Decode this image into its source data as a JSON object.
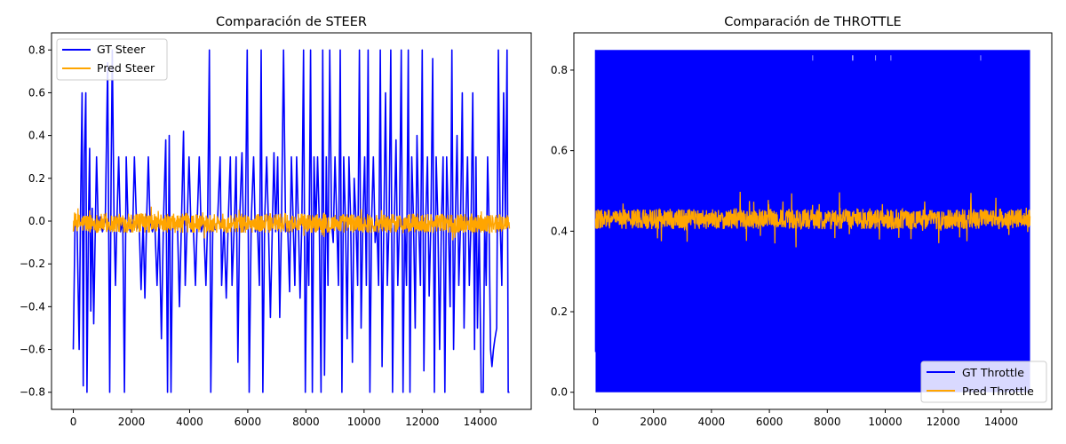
{
  "chart_data": [
    {
      "type": "line",
      "title": "Comparación de STEER",
      "xlabel": "",
      "ylabel": "",
      "xlim": [
        -750,
        15750
      ],
      "ylim": [
        -0.88,
        0.88
      ],
      "xticks": [
        0,
        2000,
        4000,
        6000,
        8000,
        10000,
        12000,
        14000
      ],
      "yticks": [
        -0.8,
        -0.6,
        -0.4,
        -0.2,
        0.0,
        0.2,
        0.4,
        0.6,
        0.8
      ],
      "ytick_labels": [
        "−0.8",
        "−0.6",
        "−0.4",
        "−0.2",
        "0.0",
        "0.2",
        "0.4",
        "0.6",
        "0.8"
      ],
      "grid": false,
      "legend": "upper-left",
      "series": [
        {
          "name": "GT Steer",
          "color": "#0000ff",
          "points": [
            [
              0,
              -0.6
            ],
            [
              60,
              0.01
            ],
            [
              130,
              -0.03
            ],
            [
              200,
              -0.6
            ],
            [
              250,
              0.06
            ],
            [
              300,
              0.6
            ],
            [
              340,
              -0.77
            ],
            [
              380,
              0.3
            ],
            [
              430,
              0.6
            ],
            [
              470,
              -0.8
            ],
            [
              520,
              0.0
            ],
            [
              560,
              0.34
            ],
            [
              600,
              -0.42
            ],
            [
              650,
              0.06
            ],
            [
              700,
              -0.48
            ],
            [
              760,
              0.0
            ],
            [
              800,
              0.3
            ],
            [
              860,
              -0.04
            ],
            [
              920,
              0.02
            ],
            [
              1000,
              -0.05
            ],
            [
              1100,
              0.0
            ],
            [
              1180,
              0.74
            ],
            [
              1250,
              -0.8
            ],
            [
              1300,
              0.22
            ],
            [
              1340,
              0.8
            ],
            [
              1400,
              0.0
            ],
            [
              1450,
              -0.3
            ],
            [
              1500,
              0.0
            ],
            [
              1560,
              0.3
            ],
            [
              1620,
              -0.05
            ],
            [
              1700,
              0.0
            ],
            [
              1760,
              -0.8
            ],
            [
              1820,
              0.3
            ],
            [
              1880,
              0.0
            ],
            [
              1960,
              -0.05
            ],
            [
              2050,
              0.0
            ],
            [
              2100,
              0.3
            ],
            [
              2180,
              -0.04
            ],
            [
              2260,
              0.01
            ],
            [
              2330,
              -0.32
            ],
            [
              2400,
              0.0
            ],
            [
              2460,
              -0.36
            ],
            [
              2520,
              0.0
            ],
            [
              2580,
              0.3
            ],
            [
              2640,
              0.0
            ],
            [
              2720,
              -0.05
            ],
            [
              2800,
              0.0
            ],
            [
              2880,
              -0.3
            ],
            [
              2950,
              0.0
            ],
            [
              3030,
              -0.55
            ],
            [
              3100,
              0.0
            ],
            [
              3180,
              0.38
            ],
            [
              3240,
              -0.8
            ],
            [
              3300,
              0.4
            ],
            [
              3360,
              -0.8
            ],
            [
              3420,
              0.0
            ],
            [
              3500,
              -0.03
            ],
            [
              3580,
              0.0
            ],
            [
              3650,
              -0.4
            ],
            [
              3720,
              0.0
            ],
            [
              3790,
              0.42
            ],
            [
              3850,
              -0.3
            ],
            [
              3920,
              0.0
            ],
            [
              3980,
              0.3
            ],
            [
              4050,
              -0.05
            ],
            [
              4120,
              0.0
            ],
            [
              4200,
              -0.3
            ],
            [
              4260,
              0.0
            ],
            [
              4330,
              0.3
            ],
            [
              4400,
              -0.05
            ],
            [
              4480,
              0.0
            ],
            [
              4560,
              -0.3
            ],
            [
              4620,
              0.0
            ],
            [
              4680,
              0.8
            ],
            [
              4730,
              -0.8
            ],
            [
              4800,
              0.0
            ],
            [
              4880,
              -0.04
            ],
            [
              4960,
              0.0
            ],
            [
              5050,
              0.3
            ],
            [
              5100,
              -0.3
            ],
            [
              5180,
              0.0
            ],
            [
              5260,
              -0.36
            ],
            [
              5330,
              0.01
            ],
            [
              5400,
              0.3
            ],
            [
              5460,
              -0.3
            ],
            [
              5540,
              0.0
            ],
            [
              5600,
              0.3
            ],
            [
              5660,
              -0.66
            ],
            [
              5720,
              0.0
            ],
            [
              5800,
              0.32
            ],
            [
              5850,
              -0.05
            ],
            [
              5920,
              0.0
            ],
            [
              5980,
              0.8
            ],
            [
              6050,
              -0.8
            ],
            [
              6120,
              0.0
            ],
            [
              6200,
              0.3
            ],
            [
              6260,
              -0.05
            ],
            [
              6330,
              0.0
            ],
            [
              6400,
              -0.3
            ],
            [
              6460,
              0.8
            ],
            [
              6520,
              -0.8
            ],
            [
              6580,
              0.0
            ],
            [
              6650,
              0.3
            ],
            [
              6710,
              0.0
            ],
            [
              6780,
              -0.45
            ],
            [
              6850,
              0.0
            ],
            [
              6900,
              0.32
            ],
            [
              6960,
              -0.05
            ],
            [
              7030,
              0.3
            ],
            [
              7100,
              -0.45
            ],
            [
              7160,
              0.0
            ],
            [
              7230,
              0.8
            ],
            [
              7300,
              -0.05
            ],
            [
              7370,
              0.0
            ],
            [
              7440,
              -0.33
            ],
            [
              7500,
              0.3
            ],
            [
              7560,
              0.0
            ],
            [
              7620,
              -0.3
            ],
            [
              7680,
              0.3
            ],
            [
              7740,
              0.0
            ],
            [
              7800,
              -0.36
            ],
            [
              7860,
              0.0
            ],
            [
              7920,
              0.8
            ],
            [
              7980,
              -0.8
            ],
            [
              8040,
              0.0
            ],
            [
              8100,
              -0.3
            ],
            [
              8160,
              0.8
            ],
            [
              8220,
              -0.8
            ],
            [
              8280,
              0.3
            ],
            [
              8340,
              -0.05
            ],
            [
              8400,
              0.3
            ],
            [
              8460,
              0.0
            ],
            [
              8520,
              -0.8
            ],
            [
              8580,
              0.8
            ],
            [
              8640,
              -0.72
            ],
            [
              8700,
              0.3
            ],
            [
              8760,
              -0.3
            ],
            [
              8820,
              0.8
            ],
            [
              8880,
              0.0
            ],
            [
              8940,
              -0.1
            ],
            [
              9000,
              0.3
            ],
            [
              9060,
              0.0
            ],
            [
              9120,
              -0.3
            ],
            [
              9180,
              0.8
            ],
            [
              9240,
              -0.8
            ],
            [
              9300,
              0.3
            ],
            [
              9360,
              0.0
            ],
            [
              9420,
              -0.55
            ],
            [
              9480,
              0.3
            ],
            [
              9540,
              0.0
            ],
            [
              9600,
              -0.66
            ],
            [
              9660,
              0.2
            ],
            [
              9720,
              0.0
            ],
            [
              9780,
              -0.3
            ],
            [
              9840,
              0.8
            ],
            [
              9900,
              -0.5
            ],
            [
              9960,
              0.0
            ],
            [
              10020,
              0.3
            ],
            [
              10080,
              -0.3
            ],
            [
              10140,
              0.8
            ],
            [
              10200,
              -0.8
            ],
            [
              10260,
              0.0
            ],
            [
              10320,
              0.3
            ],
            [
              10380,
              -0.1
            ],
            [
              10440,
              0.0
            ],
            [
              10500,
              -0.3
            ],
            [
              10560,
              0.8
            ],
            [
              10620,
              -0.68
            ],
            [
              10680,
              0.0
            ],
            [
              10740,
              0.6
            ],
            [
              10800,
              -0.3
            ],
            [
              10860,
              0.0
            ],
            [
              10920,
              0.8
            ],
            [
              10980,
              -0.8
            ],
            [
              11040,
              0.0
            ],
            [
              11100,
              0.38
            ],
            [
              11160,
              -0.3
            ],
            [
              11220,
              0.0
            ],
            [
              11280,
              0.8
            ],
            [
              11340,
              -0.8
            ],
            [
              11400,
              0.0
            ],
            [
              11460,
              -0.3
            ],
            [
              11520,
              0.8
            ],
            [
              11580,
              -0.8
            ],
            [
              11640,
              0.3
            ],
            [
              11700,
              0.0
            ],
            [
              11760,
              -0.5
            ],
            [
              11820,
              0.4
            ],
            [
              11880,
              0.0
            ],
            [
              11940,
              -0.3
            ],
            [
              12000,
              0.8
            ],
            [
              12060,
              -0.7
            ],
            [
              12120,
              0.0
            ],
            [
              12180,
              0.3
            ],
            [
              12240,
              -0.35
            ],
            [
              12300,
              0.0
            ],
            [
              12360,
              0.76
            ],
            [
              12420,
              -0.8
            ],
            [
              12480,
              0.3
            ],
            [
              12540,
              0.0
            ],
            [
              12600,
              -0.6
            ],
            [
              12660,
              0.0
            ],
            [
              12720,
              0.3
            ],
            [
              12780,
              -0.8
            ],
            [
              12840,
              0.3
            ],
            [
              12900,
              0.0
            ],
            [
              12960,
              -0.4
            ],
            [
              13020,
              0.8
            ],
            [
              13080,
              -0.6
            ],
            [
              13140,
              0.0
            ],
            [
              13200,
              0.4
            ],
            [
              13260,
              -0.3
            ],
            [
              13320,
              0.0
            ],
            [
              13380,
              0.6
            ],
            [
              13440,
              -0.5
            ],
            [
              13500,
              0.0
            ],
            [
              13560,
              0.3
            ],
            [
              13620,
              -0.3
            ],
            [
              13680,
              0.0
            ],
            [
              13740,
              0.6
            ],
            [
              13800,
              -0.6
            ],
            [
              13850,
              0.3
            ],
            [
              13900,
              -0.5
            ],
            [
              13960,
              0.0
            ],
            [
              14030,
              -0.8
            ],
            [
              14100,
              -0.8
            ],
            [
              14150,
              0.0
            ],
            [
              14200,
              -0.3
            ],
            [
              14250,
              0.3
            ],
            [
              14300,
              0.0
            ],
            [
              14350,
              -0.6
            ],
            [
              14400,
              -0.68
            ],
            [
              14450,
              -0.6
            ],
            [
              14500,
              -0.55
            ],
            [
              14560,
              -0.5
            ],
            [
              14620,
              0.8
            ],
            [
              14680,
              0.0
            ],
            [
              14740,
              -0.3
            ],
            [
              14800,
              0.6
            ],
            [
              14860,
              0.0
            ],
            [
              14920,
              0.8
            ],
            [
              14960,
              -0.8
            ],
            [
              15000,
              -0.8
            ]
          ]
        },
        {
          "name": "Pred Steer",
          "color": "#ffa500",
          "mean": -0.01,
          "noise_amplitude": 0.045,
          "range": [
            -0.1,
            0.1
          ],
          "x_range": [
            0,
            15000
          ]
        }
      ]
    },
    {
      "type": "line",
      "title": "Comparación de THROTTLE",
      "xlabel": "",
      "ylabel": "",
      "xlim": [
        -750,
        15750
      ],
      "ylim": [
        -0.0425,
        0.8925
      ],
      "xticks": [
        0,
        2000,
        4000,
        6000,
        8000,
        10000,
        12000,
        14000
      ],
      "yticks": [
        0.0,
        0.2,
        0.4,
        0.6,
        0.8
      ],
      "grid": false,
      "legend": "lower-right",
      "series": [
        {
          "name": "GT Throttle",
          "color": "#0000ff",
          "x_range": [
            0,
            15000
          ],
          "range": [
            0.0,
            0.85
          ],
          "note_values": "rapidly alternates between 0.0 and 0.85"
        },
        {
          "name": "Pred Throttle",
          "color": "#ffa500",
          "mean": 0.43,
          "noise_amplitude": 0.025,
          "range": [
            0.36,
            0.52
          ],
          "x_range": [
            0,
            15000
          ]
        }
      ]
    }
  ]
}
